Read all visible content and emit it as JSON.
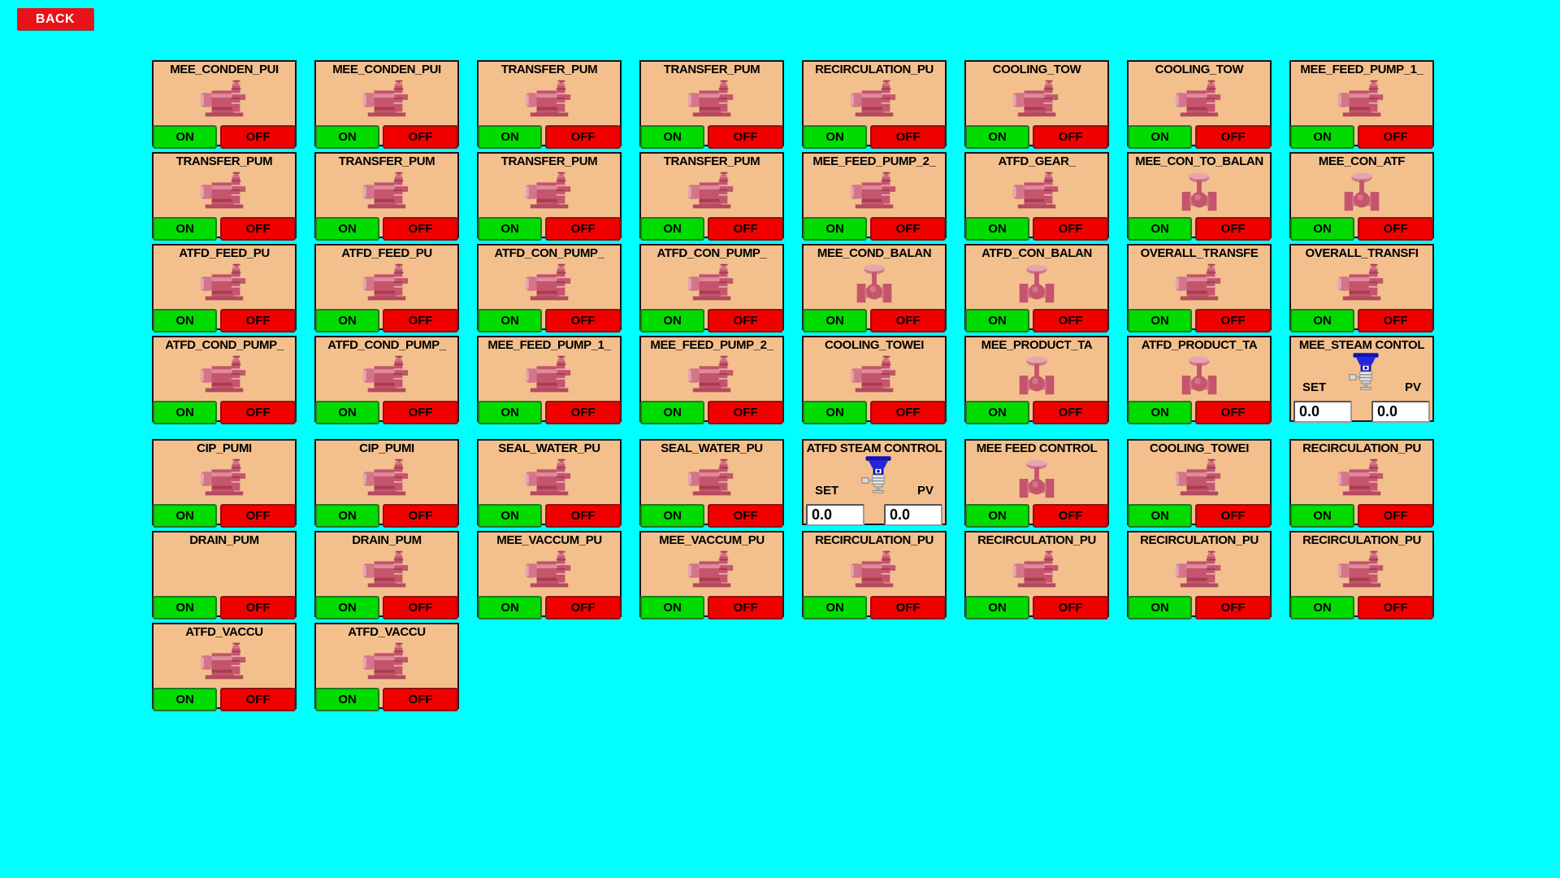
{
  "back_button": {
    "label": "BACK"
  },
  "buttons": {
    "on_label": "ON",
    "off_label": "OFF"
  },
  "control_labels": {
    "set_label": "SET",
    "pv_label": "PV"
  },
  "colors": {
    "background": "#00FFFF",
    "tile_background": "#F3C08D",
    "on_button": "#00DC00",
    "off_button": "#F20000",
    "back_button": "#EA1218",
    "equipment_icon": "#C4556C",
    "control_valve_icon": "#1A1ACD"
  },
  "grid": {
    "rows": [
      {
        "tiles": [
          {
            "title": "MEE_CONDEN_PUI",
            "icon": "pump",
            "controls": "onoff"
          },
          {
            "title": "MEE_CONDEN_PUI",
            "icon": "pump",
            "controls": "onoff"
          },
          {
            "title": "TRANSFER_PUM",
            "icon": "pump",
            "controls": "onoff"
          },
          {
            "title": "TRANSFER_PUM",
            "icon": "pump",
            "controls": "onoff"
          },
          {
            "title": "RECIRCULATION_PU",
            "icon": "pump",
            "controls": "onoff"
          },
          {
            "title": "COOLING_TOW",
            "icon": "pump",
            "controls": "onoff"
          },
          {
            "title": "COOLING_TOW",
            "icon": "pump",
            "controls": "onoff"
          },
          {
            "title": "MEE_FEED_PUMP_1_",
            "icon": "pump",
            "controls": "onoff"
          }
        ]
      },
      {
        "tiles": [
          {
            "title": "TRANSFER_PUM",
            "icon": "pump",
            "controls": "onoff"
          },
          {
            "title": "TRANSFER_PUM",
            "icon": "pump",
            "controls": "onoff"
          },
          {
            "title": "TRANSFER_PUM",
            "icon": "pump",
            "controls": "onoff"
          },
          {
            "title": "TRANSFER_PUM",
            "icon": "pump",
            "controls": "onoff"
          },
          {
            "title": "MEE_FEED_PUMP_2_",
            "icon": "pump",
            "controls": "onoff"
          },
          {
            "title": "ATFD_GEAR_",
            "icon": "pump",
            "controls": "onoff"
          },
          {
            "title": "MEE_CON_TO_BALAN",
            "icon": "valve",
            "controls": "onoff"
          },
          {
            "title": "MEE_CON_ATF",
            "icon": "valve",
            "controls": "onoff"
          }
        ]
      },
      {
        "tiles": [
          {
            "title": "ATFD_FEED_PU",
            "icon": "pump",
            "controls": "onoff"
          },
          {
            "title": "ATFD_FEED_PU",
            "icon": "pump",
            "controls": "onoff"
          },
          {
            "title": "ATFD_CON_PUMP_",
            "icon": "pump",
            "controls": "onoff"
          },
          {
            "title": "ATFD_CON_PUMP_",
            "icon": "pump",
            "controls": "onoff"
          },
          {
            "title": "MEE_COND_BALAN",
            "icon": "valve",
            "controls": "onoff"
          },
          {
            "title": "ATFD_CON_BALAN",
            "icon": "valve",
            "controls": "onoff"
          },
          {
            "title": "OVERALL_TRANSFE",
            "icon": "pump",
            "controls": "onoff"
          },
          {
            "title": "OVERALL_TRANSFI",
            "icon": "pump",
            "controls": "onoff"
          }
        ]
      },
      {
        "tiles": [
          {
            "title": "ATFD_COND_PUMP_",
            "icon": "pump",
            "controls": "onoff"
          },
          {
            "title": "ATFD_COND_PUMP_",
            "icon": "pump",
            "controls": "onoff"
          },
          {
            "title": "MEE_FEED_PUMP_1_",
            "icon": "pump",
            "controls": "onoff"
          },
          {
            "title": "MEE_FEED_PUMP_2_",
            "icon": "pump",
            "controls": "onoff"
          },
          {
            "title": "COOLING_TOWEI",
            "icon": "pump",
            "controls": "onoff"
          },
          {
            "title": "MEE_PRODUCT_TA",
            "icon": "valve",
            "controls": "onoff"
          },
          {
            "title": "ATFD_PRODUCT_TA",
            "icon": "valve",
            "controls": "onoff"
          },
          {
            "title": "MEE_STEAM CONTOL",
            "icon": "control-valve",
            "controls": "setpv",
            "set_value": "0.0",
            "pv_value": "0.0"
          }
        ]
      },
      {
        "tiles": [
          {
            "title": "CIP_PUMI",
            "icon": "pump",
            "controls": "onoff"
          },
          {
            "title": "CIP_PUMI",
            "icon": "pump",
            "controls": "onoff"
          },
          {
            "title": "SEAL_WATER_PU",
            "icon": "pump",
            "controls": "onoff"
          },
          {
            "title": "SEAL_WATER_PU",
            "icon": "pump",
            "controls": "onoff"
          },
          {
            "title": "ATFD STEAM CONTROL",
            "icon": "control-valve",
            "controls": "setpv",
            "set_value": "0.0",
            "pv_value": "0.0"
          },
          {
            "title": "MEE FEED CONTROL",
            "icon": "valve",
            "controls": "onoff"
          },
          {
            "title": "COOLING_TOWEI",
            "icon": "pump",
            "controls": "onoff"
          },
          {
            "title": "RECIRCULATION_PU",
            "icon": "pump",
            "controls": "onoff"
          }
        ]
      },
      {
        "tiles": [
          {
            "title": "DRAIN_PUM",
            "icon": "none",
            "controls": "onoff"
          },
          {
            "title": "DRAIN_PUM",
            "icon": "pump",
            "controls": "onoff"
          },
          {
            "title": "MEE_VACCUM_PU",
            "icon": "pump",
            "controls": "onoff"
          },
          {
            "title": "MEE_VACCUM_PU",
            "icon": "pump",
            "controls": "onoff"
          },
          {
            "title": "RECIRCULATION_PU",
            "icon": "pump",
            "controls": "onoff"
          },
          {
            "title": "RECIRCULATION_PU",
            "icon": "pump",
            "controls": "onoff"
          },
          {
            "title": "RECIRCULATION_PU",
            "icon": "pump",
            "controls": "onoff"
          },
          {
            "title": "RECIRCULATION_PU",
            "icon": "pump",
            "controls": "onoff"
          }
        ]
      },
      {
        "tiles": [
          {
            "title": "ATFD_VACCU",
            "icon": "pump",
            "controls": "onoff"
          },
          {
            "title": "ATFD_VACCU",
            "icon": "pump",
            "controls": "onoff"
          }
        ]
      }
    ]
  }
}
